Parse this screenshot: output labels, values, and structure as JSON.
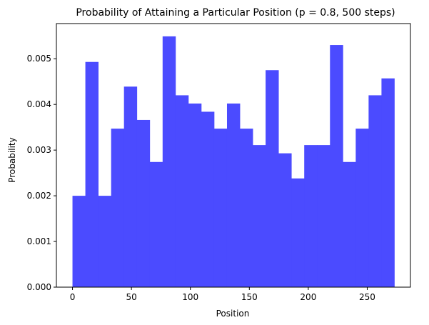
{
  "chart_data": {
    "type": "bar",
    "title": "Probability of Attaining a Particular Position (p = 0.8, 500 steps)",
    "xlabel": "Position",
    "ylabel": "Probability",
    "xlim": [
      -13.65,
      286.65
    ],
    "ylim": [
      0,
      0.00577
    ],
    "grid": false,
    "color": "#4b4bff",
    "bin_edges": [
      0,
      10.92,
      21.84,
      32.76,
      43.68,
      54.6,
      65.52,
      76.44,
      87.36,
      98.28,
      109.2,
      120.12,
      131.04,
      141.96,
      152.88,
      163.8,
      174.72,
      185.64,
      196.56,
      207.48,
      218.4,
      229.32,
      240.24,
      251.16,
      262.08,
      273
    ],
    "values": [
      0.002,
      0.00493,
      0.002,
      0.00347,
      0.00439,
      0.00366,
      0.00274,
      0.00549,
      0.0042,
      0.00402,
      0.00384,
      0.00347,
      0.00402,
      0.00347,
      0.00311,
      0.00475,
      0.00293,
      0.00238,
      0.00311,
      0.00311,
      0.0053,
      0.00274,
      0.00347,
      0.0042,
      0.00457
    ],
    "xticks": [
      0,
      50,
      100,
      150,
      200,
      250
    ],
    "xtick_labels": [
      "0",
      "50",
      "100",
      "150",
      "200",
      "250"
    ],
    "yticks": [
      0,
      0.001,
      0.002,
      0.003,
      0.004,
      0.005
    ],
    "ytick_labels": [
      "0.000",
      "0.001",
      "0.002",
      "0.003",
      "0.004",
      "0.005"
    ]
  }
}
